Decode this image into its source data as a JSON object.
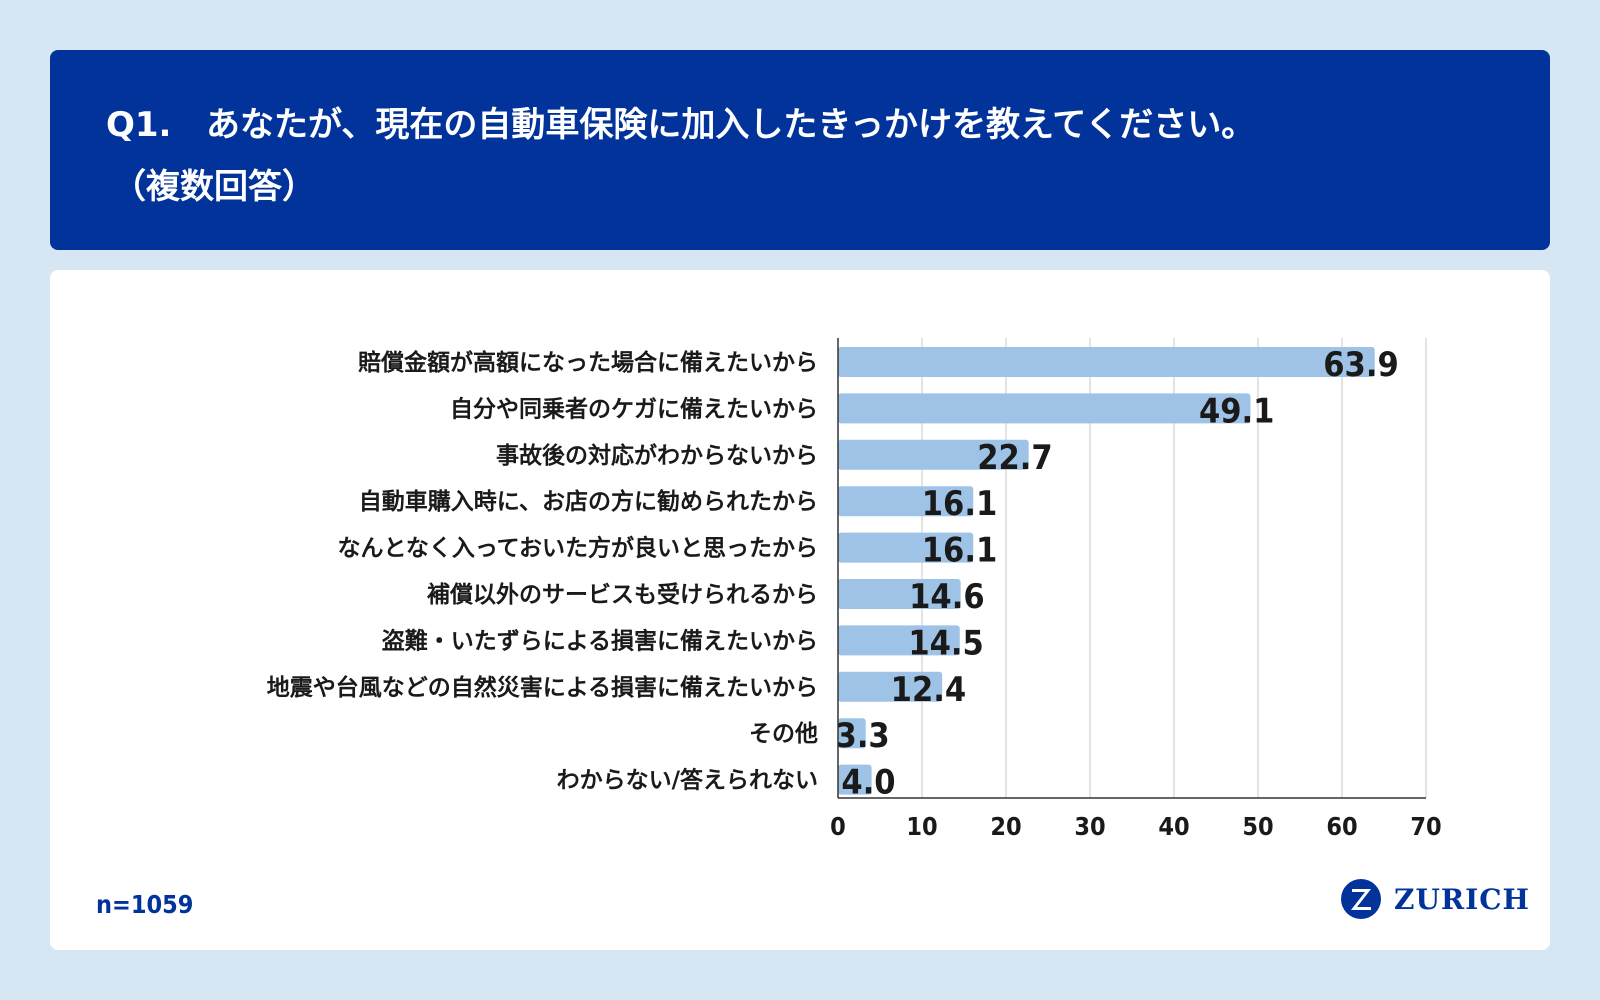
{
  "header": {
    "question_number": "Q1.",
    "question_text": "あなたが、現在の自動車保険に加入したきっかけを教えてください。",
    "question_note": "（複数回答）"
  },
  "footer": {
    "sample_size": "n=1059",
    "brand": "ZURICH"
  },
  "colors": {
    "header_bg": "#02339a",
    "bar": "#9ec3e6",
    "page_bg": "#d6e6f3"
  },
  "chart_data": {
    "type": "bar",
    "orientation": "horizontal",
    "categories": [
      "賠償金額が高額になった場合に備えたいから",
      "自分や同乗者のケガに備えたいから",
      "事故後の対応がわからないから",
      "自動車購入時に、お店の方に勧められたから",
      "なんとなく入っておいた方が良いと思ったから",
      "補償以外のサービスも受けられるから",
      "盗難・いたずらによる損害に備えたいから",
      "地震や台風などの自然災害による損害に備えたいから",
      "その他",
      "わからない/答えられない"
    ],
    "values": [
      63.9,
      49.1,
      22.7,
      16.1,
      16.1,
      14.6,
      14.5,
      12.4,
      3.3,
      4.0
    ],
    "value_labels": [
      "63.9",
      "49.1",
      "22.7",
      "16.1",
      "16.1",
      "14.6",
      "14.5",
      "12.4",
      "3.3",
      "4.0"
    ],
    "xlim": [
      0,
      70
    ],
    "xticks": [
      0,
      10,
      20,
      30,
      40,
      50,
      60,
      70
    ],
    "grid": true,
    "title": "",
    "xlabel": "",
    "ylabel": ""
  }
}
